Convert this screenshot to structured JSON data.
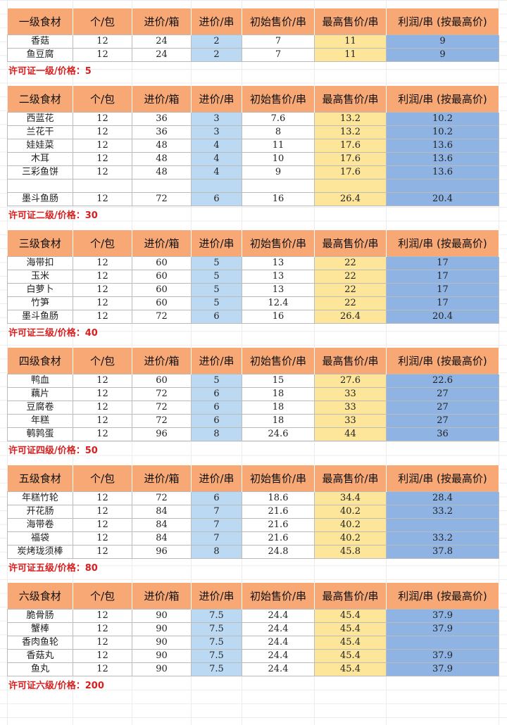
{
  "headers": [
    "个/包",
    "进价/箱",
    "进价/串",
    "初始售价/串",
    "最高售价/串",
    "利润/串 (按最高价)"
  ],
  "colors": {
    "header": "#f7a875",
    "cost_per_skewer": "#bcd9f3",
    "max_price": "#fde59a",
    "profit": "#8fb3e3",
    "license": "#d81e1e"
  },
  "sections": [
    {
      "title": "一级食材",
      "license": "许可证一级/价格：5",
      "rows": [
        [
          "香菇",
          "12",
          "24",
          "2",
          "7",
          "11",
          "9"
        ],
        [
          "鱼豆腐",
          "12",
          "24",
          "2",
          "7",
          "11",
          "9"
        ]
      ]
    },
    {
      "title": "二级食材",
      "license": "许可证二级/价格：30",
      "rows": [
        [
          "西蓝花",
          "12",
          "36",
          "3",
          "7.6",
          "13.2",
          "10.2"
        ],
        [
          "兰花干",
          "12",
          "36",
          "3",
          "8",
          "13.2",
          "10.2"
        ],
        [
          "娃娃菜",
          "12",
          "48",
          "4",
          "11",
          "17.6",
          "13.6"
        ],
        [
          "木耳",
          "12",
          "48",
          "4",
          "10",
          "17.6",
          "13.6"
        ],
        [
          "三彩鱼饼",
          "12",
          "48",
          "4",
          "9",
          "17.6",
          "13.6"
        ],
        [
          "",
          "",
          "",
          "",
          "",
          "",
          ""
        ],
        [
          "墨斗鱼肠",
          "12",
          "72",
          "6",
          "16",
          "26.4",
          "20.4"
        ]
      ]
    },
    {
      "title": "三级食材",
      "license": "许可证三级/价格：40",
      "rows": [
        [
          "海带扣",
          "12",
          "60",
          "5",
          "13",
          "22",
          "17"
        ],
        [
          "玉米",
          "12",
          "60",
          "5",
          "13",
          "22",
          "17"
        ],
        [
          "白萝卜",
          "12",
          "60",
          "5",
          "13",
          "22",
          "17"
        ],
        [
          "竹笋",
          "12",
          "60",
          "5",
          "12.4",
          "22",
          "17"
        ],
        [
          "墨斗鱼肠",
          "12",
          "72",
          "6",
          "16",
          "26.4",
          "20.4"
        ]
      ]
    },
    {
      "title": "四级食材",
      "license": "许可证四级/价格：50",
      "rows": [
        [
          "鸭血",
          "12",
          "60",
          "5",
          "15",
          "27.6",
          "22.6"
        ],
        [
          "藕片",
          "12",
          "72",
          "6",
          "18",
          "33",
          "27"
        ],
        [
          "豆腐卷",
          "12",
          "72",
          "6",
          "18",
          "33",
          "27"
        ],
        [
          "年糕",
          "12",
          "72",
          "6",
          "18",
          "33",
          "27"
        ],
        [
          "鹌鹑蛋",
          "12",
          "96",
          "8",
          "24.6",
          "44",
          "36"
        ]
      ]
    },
    {
      "title": "五级食材",
      "license": "许可证五级/价格：80",
      "rows": [
        [
          "年糕竹轮",
          "12",
          "72",
          "6",
          "18.6",
          "34.4",
          "28.4"
        ],
        [
          "开花肠",
          "12",
          "84",
          "7",
          "21.6",
          "40.2",
          "33.2"
        ],
        [
          "海带卷",
          "12",
          "84",
          "7",
          "21.6",
          "40.2",
          ""
        ],
        [
          "福袋",
          "12",
          "84",
          "7",
          "21.6",
          "40.2",
          "33.2"
        ],
        [
          "炭烤珑须棒",
          "12",
          "96",
          "8",
          "24.8",
          "45.8",
          "37.8"
        ]
      ]
    },
    {
      "title": "六级食材",
      "license": "许可证六级/价格：200",
      "rows": [
        [
          "脆骨肠",
          "12",
          "90",
          "7.5",
          "24.4",
          "45.4",
          "37.9"
        ],
        [
          "蟹棒",
          "12",
          "90",
          "7.5",
          "24.4",
          "45.4",
          "37.9"
        ],
        [
          "香肉鱼轮",
          "12",
          "90",
          "7.5",
          "24.4",
          "45.4",
          ""
        ],
        [
          "香菇丸",
          "12",
          "90",
          "7.5",
          "24.4",
          "45.4",
          "37.9"
        ],
        [
          "鱼丸",
          "12",
          "90",
          "7.5",
          "24.4",
          "45.4",
          "37.9"
        ]
      ]
    }
  ]
}
